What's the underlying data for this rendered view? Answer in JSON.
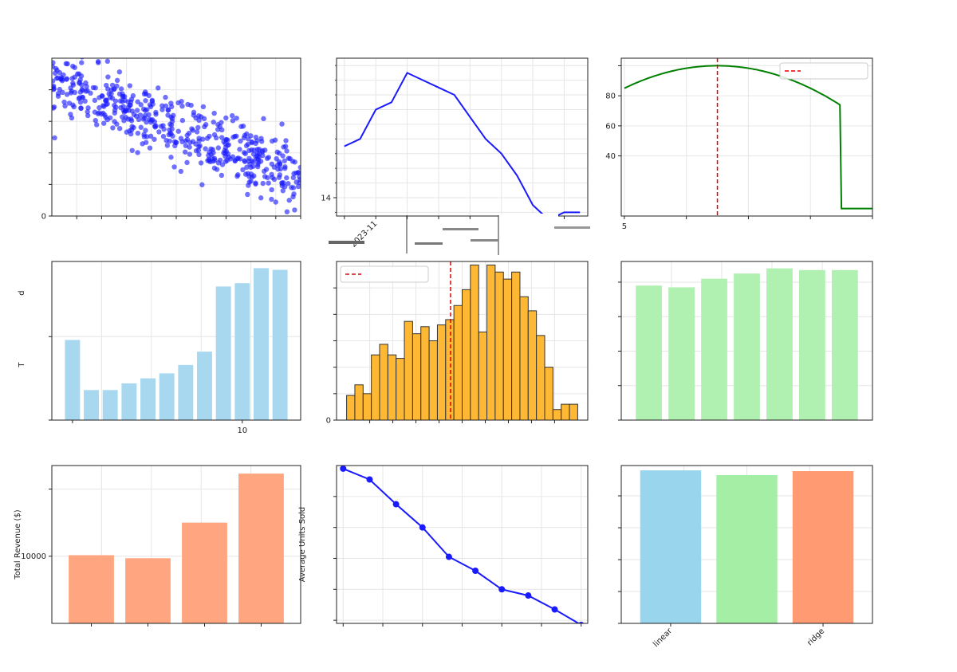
{
  "figure": {
    "background": "#ffffff"
  },
  "chart_data": [
    {
      "id": "scatter",
      "type": "scatter",
      "color": "#1a1aff",
      "n_points": 500,
      "x_range": [
        0,
        100
      ],
      "y_range": [
        0,
        100
      ],
      "xlim": [
        0,
        100
      ],
      "ylim": [
        0,
        100
      ],
      "trend": {
        "slope": -0.6,
        "intercept": 85,
        "noise": 10,
        "floor": 2
      },
      "yticks": [
        {
          "v": 0,
          "label": "0"
        },
        {
          "v": 20,
          "label": ""
        },
        {
          "v": 40,
          "label": ""
        },
        {
          "v": 60,
          "label": ""
        },
        {
          "v": 80,
          "label": ""
        }
      ],
      "xticks": [
        {
          "v": 10,
          "label": ""
        },
        {
          "v": 20,
          "label": ""
        },
        {
          "v": 30,
          "label": ""
        },
        {
          "v": 40,
          "label": ""
        },
        {
          "v": 50,
          "label": ""
        },
        {
          "v": 60,
          "label": ""
        },
        {
          "v": 70,
          "label": ""
        },
        {
          "v": 80,
          "label": ""
        },
        {
          "v": 90,
          "label": ""
        },
        {
          "v": 100,
          "label": ""
        }
      ],
      "grid": true
    },
    {
      "id": "line-trend",
      "type": "line",
      "color": "#1a1aff",
      "x": [
        0,
        1,
        2,
        3,
        4,
        5,
        6,
        7,
        8,
        9,
        10,
        11,
        12,
        13,
        14,
        15
      ],
      "values": [
        14.7,
        14.8,
        15.2,
        15.3,
        15.7,
        15.6,
        15.5,
        15.4,
        15.1,
        14.8,
        14.6,
        14.3,
        13.9,
        13.7,
        13.8,
        13.8
      ],
      "xlim": [
        -0.5,
        15.5
      ],
      "ylim": [
        13.75,
        15.9
      ],
      "yticks": [
        {
          "v": 14,
          "label": "14"
        }
      ],
      "yminor": [
        13.8,
        14.2,
        14.4,
        14.6,
        14.8,
        15.0,
        15.2,
        15.4,
        15.6,
        15.8
      ],
      "xticks": [
        {
          "v": 0,
          "label": ""
        },
        {
          "v": 2,
          "label": "2023-11"
        },
        {
          "v": 4,
          "label": ""
        },
        {
          "v": 6,
          "label": ""
        },
        {
          "v": 8,
          "label": ""
        },
        {
          "v": 10,
          "label": ""
        },
        {
          "v": 12,
          "label": ""
        },
        {
          "v": 14,
          "label": ""
        }
      ],
      "grid": true
    },
    {
      "id": "curve",
      "type": "line",
      "color": "#008000",
      "curve": {
        "x_start": 5,
        "x_end": 45,
        "peak_x": 20,
        "peak_y": 100,
        "start_y": 85,
        "floor": 5,
        "floor_at": 40
      },
      "xlim": [
        4.5,
        45
      ],
      "ylim": [
        0,
        105
      ],
      "vline": {
        "x": 20,
        "color": "#e00000"
      },
      "legend": {
        "position": "upper right",
        "entries": [
          {
            "label": "",
            "color": "#e00000",
            "style": "dashed"
          }
        ]
      },
      "yticks": [
        {
          "v": 40,
          "label": "40"
        },
        {
          "v": 60,
          "label": "60"
        },
        {
          "v": 80,
          "label": "80"
        },
        {
          "v": 100,
          "label": ""
        }
      ],
      "xticks": [
        {
          "v": 5,
          "label": "5"
        },
        {
          "v": 15,
          "label": ""
        },
        {
          "v": 25,
          "label": ""
        },
        {
          "v": 35,
          "label": ""
        },
        {
          "v": 45,
          "label": ""
        }
      ],
      "grid": true
    },
    {
      "id": "bar-blue",
      "type": "bar",
      "color": "#a8d8f0",
      "categories": [
        "1",
        "2",
        "3",
        "4",
        "5",
        "6",
        "7",
        "8",
        "9",
        "10",
        "11",
        "12"
      ],
      "values": [
        48,
        18,
        18,
        22,
        25,
        28,
        33,
        41,
        80,
        82,
        91,
        90
      ],
      "ylim": [
        0,
        95
      ],
      "ylabel": "d",
      "ylabel2": "T",
      "yticks": [
        {
          "v": 0,
          "label": ""
        },
        {
          "v": 50,
          "label": ""
        }
      ],
      "xticks": [
        {
          "i": 0,
          "label": ""
        },
        {
          "i": 9,
          "label": "10"
        }
      ],
      "grid": true
    },
    {
      "id": "histogram",
      "type": "bar",
      "color": "#ffb833",
      "edge": "#333333",
      "bin_range": [
        0,
        100
      ],
      "values": [
        14,
        20,
        15,
        37,
        43,
        37,
        35,
        56,
        49,
        53,
        45,
        54,
        57,
        65,
        74,
        88,
        50,
        88,
        84,
        80,
        84,
        70,
        62,
        48,
        30,
        6,
        9,
        9
      ],
      "ylim": [
        0,
        90
      ],
      "vline": {
        "x": 45,
        "color": "#e00000"
      },
      "legend": {
        "position": "upper left",
        "entries": [
          {
            "label": "",
            "color": "#e00000",
            "style": "dashed"
          }
        ]
      },
      "yticks": [
        {
          "v": 0,
          "label": "0"
        },
        {
          "v": 15,
          "label": ""
        },
        {
          "v": 30,
          "label": ""
        },
        {
          "v": 45,
          "label": ""
        },
        {
          "v": 60,
          "label": ""
        },
        {
          "v": 75,
          "label": ""
        }
      ],
      "xticks": [
        {
          "v": 10,
          "label": ""
        },
        {
          "v": 20,
          "label": ""
        },
        {
          "v": 30,
          "label": ""
        },
        {
          "v": 40,
          "label": ""
        },
        {
          "v": 50,
          "label": ""
        },
        {
          "v": 60,
          "label": ""
        },
        {
          "v": 70,
          "label": ""
        },
        {
          "v": 80,
          "label": ""
        },
        {
          "v": 90,
          "label": ""
        }
      ],
      "grid": true
    },
    {
      "id": "bar-green",
      "type": "bar",
      "color": "#b0f0b0",
      "categories": [
        "1",
        "2",
        "3",
        "4",
        "5",
        "6",
        "7"
      ],
      "values": [
        0.78,
        0.77,
        0.82,
        0.85,
        0.88,
        0.87,
        0.87
      ],
      "ylim": [
        0,
        0.92
      ],
      "yticks": [
        {
          "v": 0,
          "label": ""
        },
        {
          "v": 0.2,
          "label": ""
        },
        {
          "v": 0.4,
          "label": ""
        },
        {
          "v": 0.6,
          "label": ""
        },
        {
          "v": 0.8,
          "label": ""
        }
      ],
      "xticks": [],
      "grid": true
    },
    {
      "id": "bar-revenue",
      "type": "bar",
      "color": "#ffa580",
      "categories": [
        "1",
        "2",
        "3",
        "4"
      ],
      "values": [
        10150,
        9700,
        15000,
        22300
      ],
      "ylim": [
        0,
        23500
      ],
      "ylabel": "Total Revenue ($)",
      "yticks": [
        {
          "v": 10000,
          "label": "10000"
        },
        {
          "v": 20000,
          "label": ""
        }
      ],
      "xticks": [
        {
          "i": 0,
          "label": ""
        },
        {
          "i": 1,
          "label": ""
        },
        {
          "i": 2,
          "label": ""
        },
        {
          "i": 3,
          "label": ""
        }
      ],
      "grid": true
    },
    {
      "id": "line-units",
      "type": "line",
      "color": "#1a1aff",
      "x": [
        0,
        1,
        2,
        3,
        4,
        5,
        6,
        7,
        8,
        9
      ],
      "values": [
        98,
        91,
        75,
        60,
        41,
        32,
        20,
        16,
        7,
        -3
      ],
      "xlim": [
        -0.25,
        9.25
      ],
      "ylim": [
        -2,
        100
      ],
      "ylabel": "Average Units Sold",
      "markers": true,
      "yticks": [
        {
          "v": 0,
          "label": ""
        },
        {
          "v": 20,
          "label": ""
        },
        {
          "v": 40,
          "label": ""
        },
        {
          "v": 60,
          "label": ""
        },
        {
          "v": 80,
          "label": ""
        }
      ],
      "xticks": [
        {
          "v": 0,
          "label": ""
        },
        {
          "v": 1.5,
          "label": ""
        },
        {
          "v": 3,
          "label": ""
        },
        {
          "v": 4.5,
          "label": ""
        },
        {
          "v": 6,
          "label": ""
        },
        {
          "v": 7.5,
          "label": ""
        },
        {
          "v": 9,
          "label": ""
        }
      ],
      "grid": true
    },
    {
      "id": "bar-models",
      "type": "bar",
      "colors": [
        "#99d5ec",
        "#a5eea5",
        "#ff9a72"
      ],
      "categories": [
        "linear",
        "",
        "ridge"
      ],
      "values": [
        0.96,
        0.93,
        0.955
      ],
      "ylim": [
        0,
        0.99
      ],
      "yticks": [
        {
          "v": 0,
          "label": ""
        },
        {
          "v": 0.2,
          "label": ""
        },
        {
          "v": 0.4,
          "label": ""
        },
        {
          "v": 0.6,
          "label": ""
        },
        {
          "v": 0.8,
          "label": ""
        }
      ],
      "xticks": [
        {
          "i": 0,
          "label": "linear"
        },
        {
          "i": 2,
          "label": "ridge"
        }
      ],
      "grid": true
    }
  ]
}
